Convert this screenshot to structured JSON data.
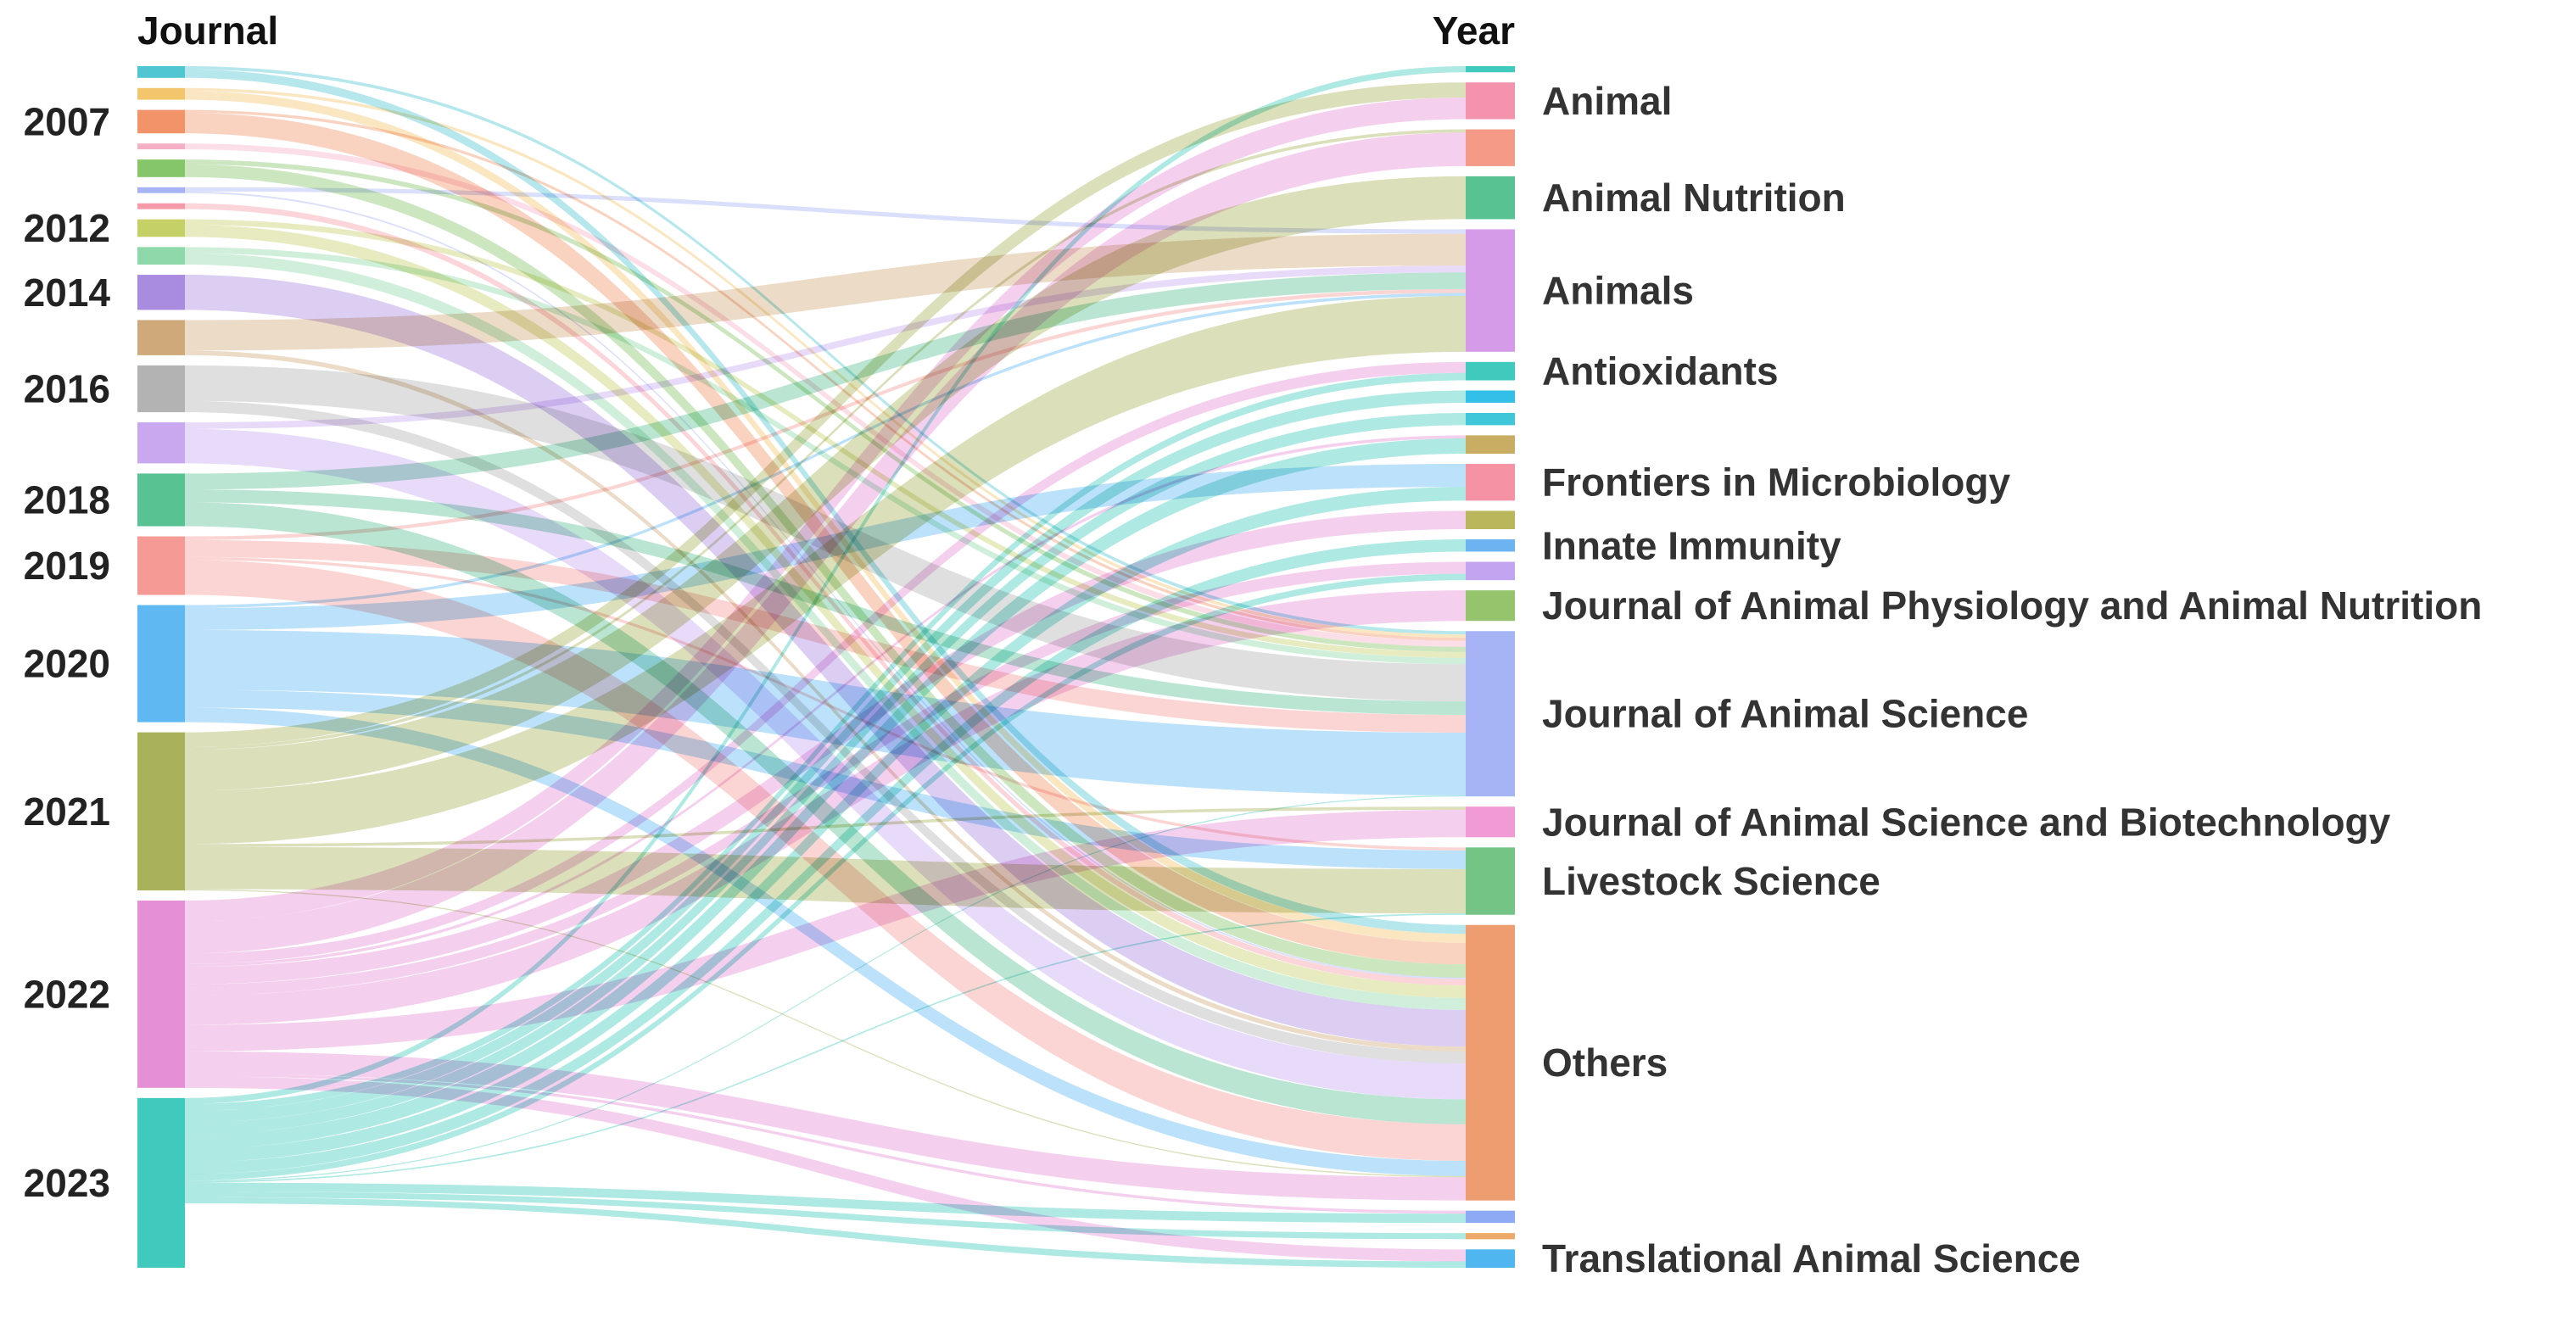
{
  "chart_data": {
    "type": "sankey",
    "left_axis_title": "Journal",
    "right_axis_title": "Year",
    "left_nodes": [
      {
        "id": "y2005",
        "label": "",
        "color": "#4fc6d2"
      },
      {
        "id": "y2006",
        "label": "",
        "color": "#f3c66e"
      },
      {
        "id": "y2007",
        "label": "2007",
        "color": "#f2936a"
      },
      {
        "id": "y2008",
        "label": "",
        "color": "#f6b0c5"
      },
      {
        "id": "y2009",
        "label": "",
        "color": "#86c66a"
      },
      {
        "id": "y2010",
        "label": "",
        "color": "#a8b3f5"
      },
      {
        "id": "y2011",
        "label": "",
        "color": "#f59aa8"
      },
      {
        "id": "y2012",
        "label": "2012",
        "color": "#c5d067"
      },
      {
        "id": "y2013",
        "label": "",
        "color": "#8ed8a9"
      },
      {
        "id": "y2014",
        "label": "2014",
        "color": "#a98be0"
      },
      {
        "id": "y2015",
        "label": "",
        "color": "#cfa97a"
      },
      {
        "id": "y2016",
        "label": "2016",
        "color": "#b3b3b3"
      },
      {
        "id": "y2017",
        "label": "",
        "color": "#c9a8f0"
      },
      {
        "id": "y2018",
        "label": "2018",
        "color": "#58c293"
      },
      {
        "id": "y2019",
        "label": "2019",
        "color": "#f59a95"
      },
      {
        "id": "y2020",
        "label": "2020",
        "color": "#5fb8f2"
      },
      {
        "id": "y2021",
        "label": "2021",
        "color": "#a9b25a"
      },
      {
        "id": "y2022",
        "label": "2022",
        "color": "#e48fd6"
      },
      {
        "id": "y2023",
        "label": "2023",
        "color": "#3fcabd"
      }
    ],
    "left_values": [
      2,
      2,
      4,
      1,
      3,
      1,
      1,
      3,
      3,
      6,
      6,
      8,
      7,
      9,
      10,
      20,
      27,
      32,
      29
    ],
    "right_nodes": [
      {
        "id": "j_top",
        "label": "",
        "color": "#3fcabd"
      },
      {
        "id": "animal",
        "label": "Animal",
        "color": "#f592ae"
      },
      {
        "id": "j_b",
        "label": "",
        "color": "#f49a86"
      },
      {
        "id": "animal_nutrition",
        "label": "Animal Nutrition",
        "color": "#58c293"
      },
      {
        "id": "animals",
        "label": "Animals",
        "color": "#d59be8"
      },
      {
        "id": "antioxidants",
        "label": "Antioxidants",
        "color": "#3fcabd"
      },
      {
        "id": "j_f",
        "label": "",
        "color": "#33bfe8"
      },
      {
        "id": "j_g",
        "label": "",
        "color": "#3fc6d8"
      },
      {
        "id": "j_h",
        "label": "",
        "color": "#c9ad62"
      },
      {
        "id": "frontiers_microbiology",
        "label": "Frontiers in Microbiology",
        "color": "#f592a4"
      },
      {
        "id": "j_j",
        "label": "",
        "color": "#b9b65c"
      },
      {
        "id": "innate_immunity",
        "label": "Innate Immunity",
        "color": "#6cb3f2"
      },
      {
        "id": "j_l",
        "label": "",
        "color": "#c3a4f0"
      },
      {
        "id": "j_anim_phys",
        "label": "Journal of Animal Physiology and Animal Nutrition",
        "color": "#96c46c"
      },
      {
        "id": "j_anim_sci",
        "label": "Journal of Animal Science",
        "color": "#a6b4f5"
      },
      {
        "id": "j_anim_sci_biotech",
        "label": "Journal of Animal Science and Biotechnology",
        "color": "#f29ad6"
      },
      {
        "id": "livestock",
        "label": "Livestock Science",
        "color": "#74c486"
      },
      {
        "id": "others",
        "label": "Others",
        "color": "#ee9d70"
      },
      {
        "id": "j_r",
        "label": "",
        "color": "#8eaaf5"
      },
      {
        "id": "j_s",
        "label": "",
        "color": "#eda96a"
      },
      {
        "id": "translational",
        "label": "Translational Animal Science",
        "color": "#4fb6f0"
      }
    ],
    "right_values": [
      1,
      6,
      6,
      7,
      20,
      3,
      2,
      2,
      3,
      6,
      3,
      2,
      3,
      5,
      27,
      5,
      11,
      45,
      2,
      1,
      3
    ]
  }
}
